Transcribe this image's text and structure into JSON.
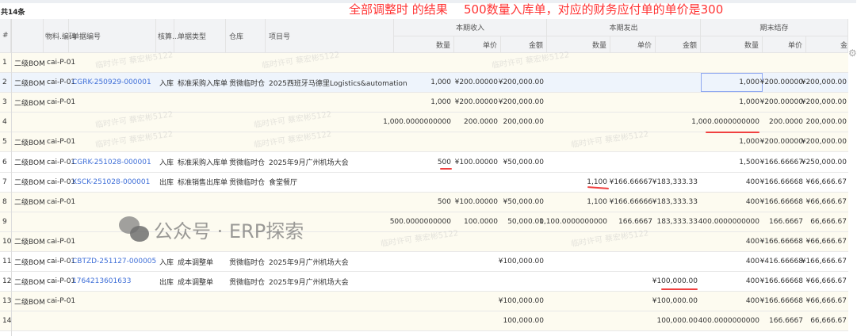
{
  "summary": {
    "count_label": "共14条"
  },
  "annotation": {
    "line1": "全部调整时 的结果",
    "line2": "500数量入库单，对应的财务应付单的单价是300",
    "color": "#f33333"
  },
  "columns": {
    "index": "#",
    "item_name": "",
    "material_code": "物料.编码",
    "doc_no": "单据编号",
    "accounting": "核算...",
    "doc_type": "单据类型",
    "warehouse": "仓库",
    "project": "项目号",
    "groups": {
      "income": "本期收入",
      "issue": "本期发出",
      "ending": "期末结存"
    },
    "qty": "数量",
    "price": "单价",
    "amount": "金额",
    "amount_truncated": "金"
  },
  "rows": [
    {
      "idx": "1",
      "name": "二级BOM",
      "code": "cai-P-01",
      "doc": "",
      "acc": "",
      "type": "",
      "wh": "",
      "proj": "",
      "in_q": "",
      "in_p": "",
      "in_a": "",
      "out_q": "",
      "out_p": "",
      "out_a": "",
      "end_q": "",
      "end_p": "",
      "end_a": "",
      "style": "cream"
    },
    {
      "idx": "2",
      "name": "二级BOM",
      "code": "cai-P-01",
      "doc": "CGRK-250929-000001",
      "acc": "入库",
      "type": "标准采购入库单",
      "wh": "贯微临时仓",
      "proj": "2025西班牙马德里Logistics&automation",
      "in_q": "1,000",
      "in_p": "¥200.00000",
      "in_a": "¥200,000.00",
      "out_q": "",
      "out_p": "",
      "out_a": "",
      "end_q": "1,000",
      "end_p": "¥200.00000",
      "end_a": "¥200,000.00",
      "style": "sel"
    },
    {
      "idx": "3",
      "name": "二级BOM",
      "code": "cai-P-01",
      "doc": "",
      "acc": "",
      "type": "",
      "wh": "",
      "proj": "",
      "in_q": "1,000",
      "in_p": "¥200.00000",
      "in_a": "¥200,000.00",
      "out_q": "",
      "out_p": "",
      "out_a": "",
      "end_q": "1,000",
      "end_p": "¥200.00000",
      "end_a": "¥200,000.00",
      "style": "cream"
    },
    {
      "idx": "4",
      "name": "",
      "code": "",
      "doc": "",
      "acc": "",
      "type": "",
      "wh": "",
      "proj": "",
      "in_q": "1,000.0000000000",
      "in_p": "200.0000",
      "in_a": "200,000.00",
      "out_q": "",
      "out_p": "",
      "out_a": "",
      "end_q": "1,000.0000000000",
      "end_p": "200.0000",
      "end_a": "200,000.00",
      "style": "cream"
    },
    {
      "idx": "5",
      "name": "二级BOM",
      "code": "cai-P-01",
      "doc": "",
      "acc": "",
      "type": "",
      "wh": "",
      "proj": "",
      "in_q": "",
      "in_p": "",
      "in_a": "",
      "out_q": "",
      "out_p": "",
      "out_a": "",
      "end_q": "1,000",
      "end_p": "¥200.00000",
      "end_a": "¥200,000.00",
      "style": "cream"
    },
    {
      "idx": "6",
      "name": "二级BOM",
      "code": "cai-P-01",
      "doc": "CGRK-251028-000001",
      "acc": "入库",
      "type": "标准采购入库单",
      "wh": "贯微临时仓",
      "proj": "2025年9月广州机场大会",
      "in_q": "500",
      "in_p": "¥100.00000",
      "in_a": "¥50,000.00",
      "out_q": "",
      "out_p": "",
      "out_a": "",
      "end_q": "1,500",
      "end_p": "¥166.66667",
      "end_a": "¥250,000.00",
      "style": "white"
    },
    {
      "idx": "7",
      "name": "二级BOM",
      "code": "cai-P-01",
      "doc": "XSCK-251028-000001",
      "acc": "出库",
      "type": "标准销售出库单",
      "wh": "贯微临时仓",
      "proj": "食堂餐厅",
      "in_q": "",
      "in_p": "",
      "in_a": "",
      "out_q": "1,100",
      "out_p": "¥166.66667",
      "out_a": "¥183,333.33",
      "end_q": "400",
      "end_p": "¥166.66668",
      "end_a": "¥66,666.67",
      "style": "white"
    },
    {
      "idx": "8",
      "name": "二级BOM",
      "code": "cai-P-01",
      "doc": "",
      "acc": "",
      "type": "",
      "wh": "",
      "proj": "",
      "in_q": "500",
      "in_p": "¥100.00000",
      "in_a": "¥50,000.00",
      "out_q": "1,100",
      "out_p": "¥166.66666",
      "out_a": "¥183,333.33",
      "end_q": "400",
      "end_p": "¥166.66668",
      "end_a": "¥66,666.67",
      "style": "cream"
    },
    {
      "idx": "9",
      "name": "",
      "code": "",
      "doc": "",
      "acc": "",
      "type": "",
      "wh": "",
      "proj": "",
      "in_q": "500.0000000000",
      "in_p": "100.0000",
      "in_a": "50,000.00",
      "out_q": "1,100.0000000000",
      "out_p": "166.6667",
      "out_a": "183,333.33",
      "end_q": "400.0000000000",
      "end_p": "166.6667",
      "end_a": "66,666.67",
      "style": "cream"
    },
    {
      "idx": "10",
      "name": "二级BOM",
      "code": "cai-P-01",
      "doc": "",
      "acc": "",
      "type": "",
      "wh": "",
      "proj": "",
      "in_q": "",
      "in_p": "",
      "in_a": "",
      "out_q": "",
      "out_p": "",
      "out_a": "",
      "end_q": "400",
      "end_p": "¥166.66668",
      "end_a": "¥66,666.67",
      "style": "cream"
    },
    {
      "idx": "11",
      "name": "二级BOM",
      "code": "cai-P-01",
      "doc": "CBTZD-251127-000005",
      "acc": "入库",
      "type": "成本调整单",
      "wh": "贯微临时仓",
      "proj": "2025年9月广州机场大会",
      "in_q": "",
      "in_p": "",
      "in_a": "¥100,000.00",
      "out_q": "",
      "out_p": "",
      "out_a": "",
      "end_q": "400",
      "end_p": "¥416.66668",
      "end_a": "¥166,666.67",
      "style": "white"
    },
    {
      "idx": "12",
      "name": "二级BOM",
      "code": "cai-P-01",
      "doc": "1764213601633",
      "acc": "出库",
      "type": "成本调整单",
      "wh": "贯微临时仓",
      "proj": "2025年9月广州机场大会",
      "in_q": "",
      "in_p": "",
      "in_a": "",
      "out_q": "",
      "out_p": "",
      "out_a": "¥100,000.00",
      "end_q": "400",
      "end_p": "¥166.66668",
      "end_a": "¥66,666.67",
      "style": "white"
    },
    {
      "idx": "13",
      "name": "二级BOM",
      "code": "cai-P-01",
      "doc": "",
      "acc": "",
      "type": "",
      "wh": "",
      "proj": "",
      "in_q": "",
      "in_p": "",
      "in_a": "¥100,000.00",
      "out_q": "",
      "out_p": "",
      "out_a": "¥100,000.00",
      "end_q": "400",
      "end_p": "¥166.66668",
      "end_a": "¥66,666.67",
      "style": "cream"
    },
    {
      "idx": "14",
      "name": "",
      "code": "",
      "doc": "",
      "acc": "",
      "type": "",
      "wh": "",
      "proj": "",
      "in_q": "",
      "in_p": "",
      "in_a": "100,000.00",
      "out_q": "",
      "out_p": "",
      "out_a": "100,000.00",
      "end_q": "400.0000000000",
      "end_p": "166.6667",
      "end_a": "66,666.67",
      "style": "cream"
    }
  ],
  "watermark": {
    "text": "公众号 · ERP探索",
    "tile": "临时许可 蔡宏彬5122"
  },
  "icons": {
    "settings": "gear-icon",
    "wechat": "wechat-icon"
  }
}
